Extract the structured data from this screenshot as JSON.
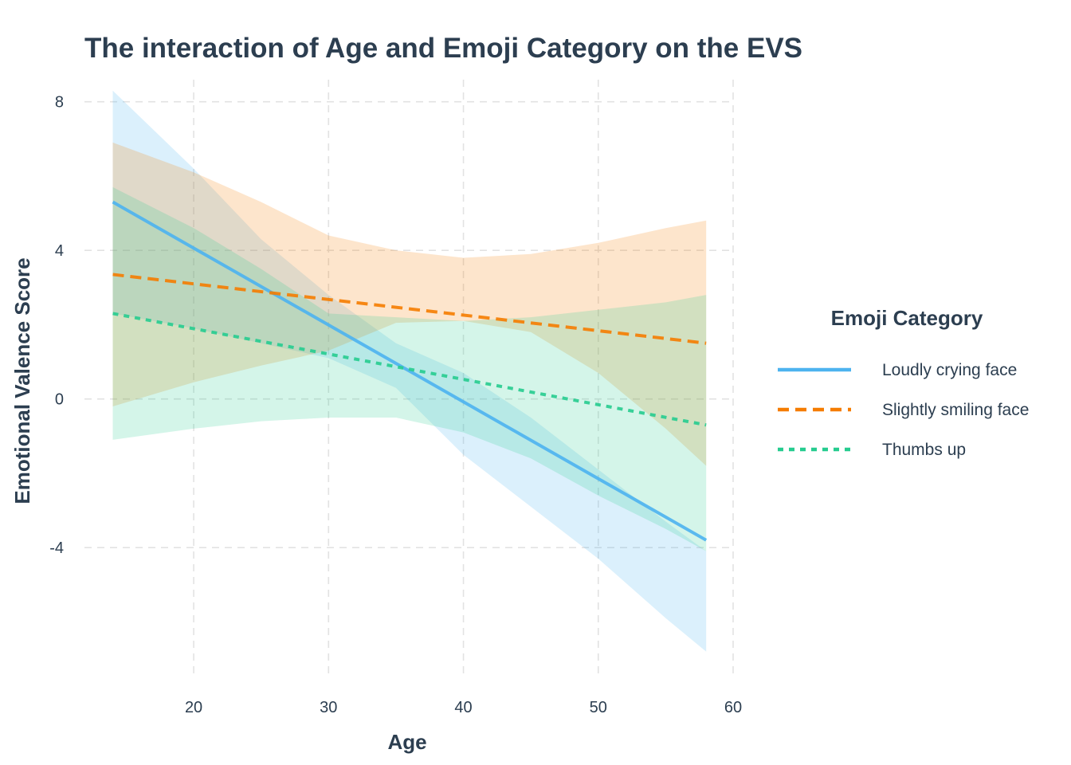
{
  "chart_data": {
    "type": "line",
    "title": "The interaction of Age and Emoji Category on the EVS",
    "xlabel": "Age",
    "ylabel": "Emotional Valence Score",
    "xlim": [
      11.9,
      60
    ],
    "ylim": [
      -7.6,
      8.7
    ],
    "x_ticks": [
      20,
      30,
      40,
      50,
      60
    ],
    "y_ticks": [
      8,
      4,
      0,
      -4
    ],
    "grid": true,
    "legend": {
      "title": "Emoji Category",
      "position": "right"
    },
    "series": [
      {
        "name": "Loudly crying face",
        "color": "#4db3ef",
        "line_style": "solid",
        "x": [
          14,
          58
        ],
        "y": [
          5.3,
          -3.8
        ],
        "ribbon": {
          "x": [
            14,
            20,
            25,
            30,
            35,
            40,
            45,
            50,
            55,
            58
          ],
          "lower": [
            2.3,
            1.9,
            1.5,
            1.1,
            0.3,
            -1.5,
            -2.9,
            -4.3,
            -5.9,
            -6.8
          ],
          "upper": [
            8.3,
            6.2,
            4.3,
            2.8,
            1.5,
            0.7,
            -0.5,
            -1.9,
            -3.3,
            -4.1
          ]
        }
      },
      {
        "name": "Slightly smiling face",
        "color": "#f57c00",
        "line_style": "dashed",
        "x": [
          14,
          58
        ],
        "y": [
          3.35,
          1.5
        ],
        "ribbon": {
          "x": [
            14,
            20,
            25,
            30,
            35,
            40,
            45,
            50,
            55,
            58
          ],
          "lower": [
            -0.2,
            0.45,
            0.9,
            1.3,
            2.05,
            2.1,
            1.8,
            0.7,
            -0.8,
            -1.8
          ],
          "upper": [
            6.9,
            6.1,
            5.3,
            4.4,
            4.0,
            3.8,
            3.9,
            4.2,
            4.6,
            4.8
          ]
        }
      },
      {
        "name": "Thumbs up",
        "color": "#26cc8f",
        "line_style": "dotted",
        "x": [
          14,
          58
        ],
        "y": [
          2.3,
          -0.7
        ],
        "ribbon": {
          "x": [
            14,
            20,
            25,
            30,
            35,
            40,
            45,
            50,
            55,
            58
          ],
          "lower": [
            -1.1,
            -0.8,
            -0.6,
            -0.5,
            -0.5,
            -0.9,
            -1.6,
            -2.6,
            -3.5,
            -4.1
          ],
          "upper": [
            5.7,
            4.6,
            3.5,
            2.3,
            2.2,
            2.1,
            2.2,
            2.4,
            2.6,
            2.8
          ]
        }
      }
    ]
  }
}
